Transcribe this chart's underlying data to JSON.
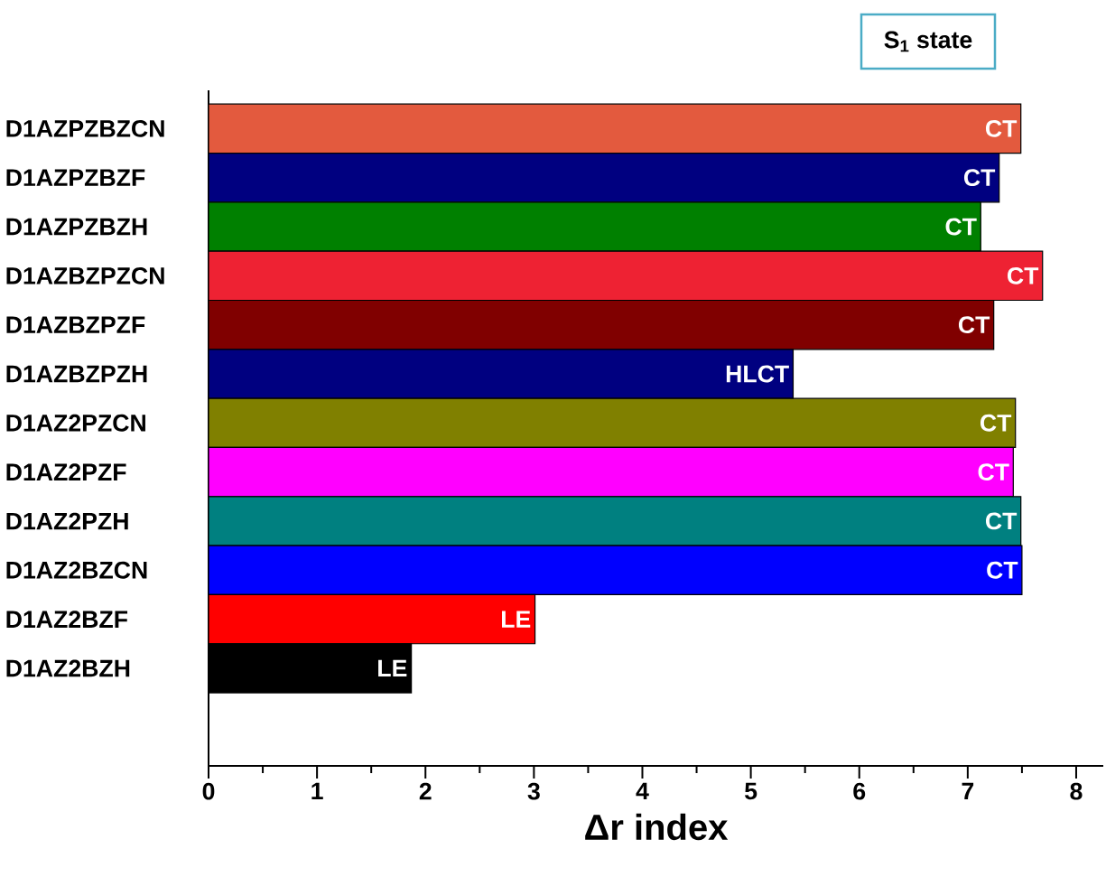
{
  "chart_data": {
    "type": "bar",
    "orientation": "horizontal",
    "categories": [
      "D1AZPZBZCN",
      "D1AZPZBZF",
      "D1AZPZBZH",
      "D1AZBZPZCN",
      "D1AZBZPZF",
      "D1AZBZPZH",
      "D1AZ2PZCN",
      "D1AZ2PZF",
      "D1AZ2PZH",
      "D1AZ2BZCN",
      "D1AZ2BZF",
      "D1AZ2BZH"
    ],
    "values": [
      7.49,
      7.29,
      7.12,
      7.69,
      7.24,
      5.39,
      7.44,
      7.42,
      7.49,
      7.5,
      3.01,
      1.87
    ],
    "colors": [
      "#e35a3e",
      "#000080",
      "#008000",
      "#ee2233",
      "#800000",
      "#000080",
      "#808000",
      "#ff00ff",
      "#008080",
      "#0000ff",
      "#ff0000",
      "#000000"
    ],
    "value_labels": [
      "CT",
      "CT",
      "CT",
      "CT",
      "CT",
      "HLCT",
      "CT",
      "CT",
      "CT",
      "CT",
      "LE",
      "LE"
    ],
    "xlim": [
      0,
      8.25
    ],
    "xticks": [
      0,
      1,
      2,
      3,
      4,
      5,
      6,
      7,
      8
    ],
    "xlabel": "Δr index",
    "annotations": [
      "S$_{1}$ state"
    ]
  }
}
